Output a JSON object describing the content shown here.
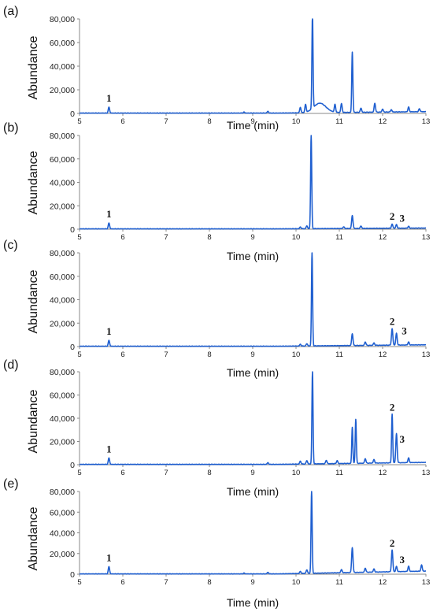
{
  "chart_data": [
    {
      "type": "line",
      "panel_label": "(a)",
      "ylabel": "Abundance",
      "xlabel": "Time (min)",
      "xlim": [
        5,
        13
      ],
      "ylim": [
        0,
        80000
      ],
      "x_ticks": [
        "5",
        "6",
        "7",
        "8",
        "9",
        "10",
        "11",
        "12",
        "13"
      ],
      "y_ticks": [
        "0",
        "20,000",
        "40,000",
        "60,000",
        "80,000"
      ],
      "peaks": [
        {
          "x": 5.68,
          "y": 5000
        },
        {
          "x": 8.8,
          "y": 800
        },
        {
          "x": 9.35,
          "y": 1500
        },
        {
          "x": 10.1,
          "y": 4500
        },
        {
          "x": 10.22,
          "y": 6500
        },
        {
          "x": 10.38,
          "y": 80000
        },
        {
          "x": 10.9,
          "y": 6500
        },
        {
          "x": 11.05,
          "y": 7500
        },
        {
          "x": 11.3,
          "y": 51000
        },
        {
          "x": 11.5,
          "y": 3500
        },
        {
          "x": 11.82,
          "y": 7500
        },
        {
          "x": 12.0,
          "y": 2500
        },
        {
          "x": 12.2,
          "y": 2000
        },
        {
          "x": 12.6,
          "y": 4000
        },
        {
          "x": 12.85,
          "y": 2500
        }
      ],
      "hump": {
        "x": 10.55,
        "y": 8000,
        "width": 0.2
      },
      "baseline_end": 1500,
      "annotations": [
        {
          "text": "1",
          "x": 5.68,
          "y": 10000
        }
      ]
    },
    {
      "type": "line",
      "panel_label": "(b)",
      "ylabel": "Abundance",
      "xlabel": "Time (min)",
      "xlim": [
        5,
        13
      ],
      "ylim": [
        0,
        80000
      ],
      "x_ticks": [
        "5",
        "6",
        "7",
        "8",
        "9",
        "10",
        "11",
        "12",
        "13"
      ],
      "y_ticks": [
        "0",
        "20,000",
        "40,000",
        "60,000",
        "80,000"
      ],
      "peaks": [
        {
          "x": 5.68,
          "y": 5000
        },
        {
          "x": 10.1,
          "y": 1500
        },
        {
          "x": 10.25,
          "y": 2500
        },
        {
          "x": 10.35,
          "y": 80000
        },
        {
          "x": 11.1,
          "y": 1500
        },
        {
          "x": 11.3,
          "y": 11000
        },
        {
          "x": 11.5,
          "y": 2000
        },
        {
          "x": 12.22,
          "y": 3500
        },
        {
          "x": 12.32,
          "y": 3000
        },
        {
          "x": 12.6,
          "y": 1500
        }
      ],
      "baseline_end": 1000,
      "annotations": [
        {
          "text": "1",
          "x": 5.68,
          "y": 10000
        },
        {
          "text": "2",
          "x": 12.22,
          "y": 8000
        },
        {
          "text": "3",
          "x": 12.45,
          "y": 6500
        }
      ]
    },
    {
      "type": "line",
      "panel_label": "(c)",
      "ylabel": "Abundance",
      "xlabel": "Time (min)",
      "xlim": [
        5,
        13
      ],
      "ylim": [
        0,
        80000
      ],
      "x_ticks": [
        "5",
        "6",
        "7",
        "8",
        "9",
        "10",
        "11",
        "12",
        "13"
      ],
      "y_ticks": [
        "0",
        "20,000",
        "40,000",
        "60,000",
        "80,000"
      ],
      "peaks": [
        {
          "x": 5.68,
          "y": 5000
        },
        {
          "x": 10.1,
          "y": 1500
        },
        {
          "x": 10.25,
          "y": 2000
        },
        {
          "x": 10.37,
          "y": 80000
        },
        {
          "x": 11.3,
          "y": 10000
        },
        {
          "x": 11.6,
          "y": 3000
        },
        {
          "x": 11.8,
          "y": 2000
        },
        {
          "x": 12.22,
          "y": 14000
        },
        {
          "x": 12.32,
          "y": 10000
        },
        {
          "x": 12.6,
          "y": 2500
        }
      ],
      "baseline_end": 1500,
      "annotations": [
        {
          "text": "1",
          "x": 5.68,
          "y": 10000
        },
        {
          "text": "2",
          "x": 12.22,
          "y": 18500
        },
        {
          "text": "3",
          "x": 12.5,
          "y": 10500
        }
      ]
    },
    {
      "type": "line",
      "panel_label": "(d)",
      "ylabel": "Abundance",
      "xlabel": "Time (min)",
      "xlim": [
        5,
        13
      ],
      "ylim": [
        0,
        80000
      ],
      "x_ticks": [
        "5",
        "6",
        "7",
        "8",
        "9",
        "10",
        "11",
        "12",
        "13"
      ],
      "y_ticks": [
        "0",
        "20,000",
        "40,000",
        "60,000",
        "80,000"
      ],
      "peaks": [
        {
          "x": 5.68,
          "y": 5500
        },
        {
          "x": 9.35,
          "y": 1500
        },
        {
          "x": 10.1,
          "y": 2500
        },
        {
          "x": 10.25,
          "y": 3000
        },
        {
          "x": 10.38,
          "y": 80000
        },
        {
          "x": 10.7,
          "y": 3000
        },
        {
          "x": 10.95,
          "y": 2500
        },
        {
          "x": 11.3,
          "y": 31000
        },
        {
          "x": 11.38,
          "y": 38000
        },
        {
          "x": 11.6,
          "y": 4000
        },
        {
          "x": 11.8,
          "y": 3000
        },
        {
          "x": 12.22,
          "y": 42000
        },
        {
          "x": 12.32,
          "y": 25000
        },
        {
          "x": 12.6,
          "y": 4000
        }
      ],
      "baseline_end": 2000,
      "annotations": [
        {
          "text": "1",
          "x": 5.68,
          "y": 10500
        },
        {
          "text": "2",
          "x": 12.22,
          "y": 46500
        },
        {
          "text": "3",
          "x": 12.45,
          "y": 19000
        }
      ]
    },
    {
      "type": "line",
      "panel_label": "(e)",
      "ylabel": "Abundance",
      "xlabel": "Time (min)",
      "xlim": [
        5,
        13
      ],
      "ylim": [
        0,
        80000
      ],
      "x_ticks": [
        "5",
        "6",
        "7",
        "8",
        "9",
        "10",
        "11",
        "12",
        "13"
      ],
      "y_ticks": [
        "0",
        "20,000",
        "40,000",
        "60,000",
        "80,000"
      ],
      "peaks": [
        {
          "x": 5.68,
          "y": 7000
        },
        {
          "x": 8.8,
          "y": 800
        },
        {
          "x": 9.35,
          "y": 1500
        },
        {
          "x": 10.1,
          "y": 2000
        },
        {
          "x": 10.25,
          "y": 3500
        },
        {
          "x": 10.36,
          "y": 80000
        },
        {
          "x": 11.05,
          "y": 3000
        },
        {
          "x": 11.3,
          "y": 24000
        },
        {
          "x": 11.6,
          "y": 4000
        },
        {
          "x": 11.8,
          "y": 3000
        },
        {
          "x": 12.22,
          "y": 21000
        },
        {
          "x": 12.32,
          "y": 5000
        },
        {
          "x": 12.6,
          "y": 5000
        },
        {
          "x": 12.9,
          "y": 6000
        }
      ],
      "baseline_end": 3000,
      "annotations": [
        {
          "text": "1",
          "x": 5.68,
          "y": 12500
        },
        {
          "text": "2",
          "x": 12.22,
          "y": 26500
        },
        {
          "text": "3",
          "x": 12.45,
          "y": 10500
        }
      ]
    }
  ]
}
